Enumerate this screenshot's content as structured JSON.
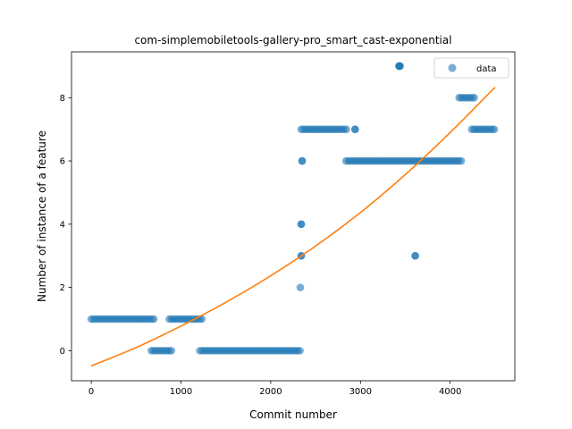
{
  "chart_data": {
    "type": "scatter",
    "title": "com-simplemobiletools-gallery-pro_smart_cast-exponential",
    "xlabel": "Commit number",
    "ylabel": "Number of instance of a feature",
    "xlim": [
      -220,
      4720
    ],
    "ylim": [
      -0.95,
      9.45
    ],
    "xticks": [
      0,
      1000,
      2000,
      3000,
      4000
    ],
    "yticks": [
      0,
      2,
      4,
      6,
      8
    ],
    "grid": false,
    "legend": {
      "position": "top-right",
      "entries": [
        "data"
      ]
    },
    "colors": {
      "data": "#1f77b4",
      "fit": "#ff7f0e"
    },
    "series": [
      {
        "name": "data",
        "kind": "scatter",
        "segments": [
          {
            "x_start": 0,
            "x_end": 700,
            "y": 1
          },
          {
            "x_start": 670,
            "x_end": 900,
            "y": 0
          },
          {
            "x_start": 870,
            "x_end": 1250,
            "y": 1
          },
          {
            "x_start": 1210,
            "x_end": 2340,
            "y": 0
          },
          {
            "x_start": 2340,
            "x_end": 2860,
            "y": 7
          },
          {
            "x_start": 2840,
            "x_end": 4140,
            "y": 6
          },
          {
            "x_start": 4100,
            "x_end": 4290,
            "y": 8
          },
          {
            "x_start": 4240,
            "x_end": 4500,
            "y": 7
          }
        ],
        "points": [
          {
            "x": 2330,
            "y": 2
          },
          {
            "x": 2340,
            "y": 3
          },
          {
            "x": 2340,
            "y": 4
          },
          {
            "x": 2350,
            "y": 6
          },
          {
            "x": 2940,
            "y": 7
          },
          {
            "x": 3430,
            "y": 9
          },
          {
            "x": 3440,
            "y": 9
          },
          {
            "x": 3610,
            "y": 3
          }
        ]
      },
      {
        "kind": "line",
        "x": [
          0,
          500,
          1000,
          1500,
          2000,
          2500,
          3000,
          3500,
          4000,
          4500
        ],
        "y": [
          -0.48,
          0.1,
          0.78,
          1.53,
          2.37,
          3.31,
          4.37,
          5.57,
          6.9,
          8.33
        ]
      }
    ]
  }
}
